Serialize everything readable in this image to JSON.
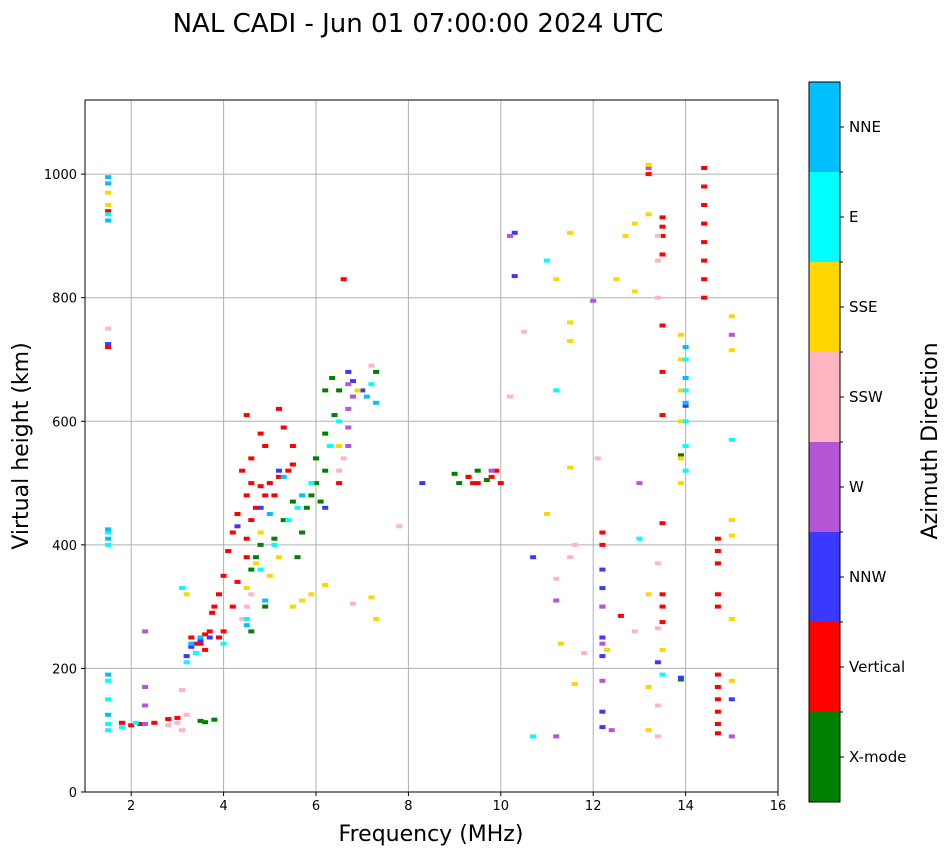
{
  "chart_data": {
    "type": "scatter",
    "title": "NAL CADI - Jun 01 07:00:00 2024 UTC",
    "xlabel": "Frequency (MHz)",
    "ylabel": "Virtual height (km)",
    "xlim": [
      1,
      16
    ],
    "ylim": [
      0,
      1120
    ],
    "xticks": [
      2,
      4,
      6,
      8,
      10,
      12,
      14,
      16
    ],
    "yticks": [
      0,
      200,
      400,
      600,
      800,
      1000
    ],
    "grid": true,
    "colorbar": {
      "title": "Azimuth Direction",
      "categories": [
        {
          "name": "X-mode",
          "color": "#008000"
        },
        {
          "name": "Vertical",
          "color": "#ff0000"
        },
        {
          "name": "NNW",
          "color": "#3a3aff"
        },
        {
          "name": "W",
          "color": "#b556d6"
        },
        {
          "name": "SSW",
          "color": "#ffb6c1"
        },
        {
          "name": "SSE",
          "color": "#ffd700"
        },
        {
          "name": "E",
          "color": "#00ffff"
        },
        {
          "name": "NNE",
          "color": "#00bfff"
        }
      ]
    },
    "series": [
      {
        "name": "X-mode",
        "points": [
          [
            3.5,
            115
          ],
          [
            3.6,
            113
          ],
          [
            3.8,
            117
          ],
          [
            5.7,
            420
          ],
          [
            5.8,
            460
          ],
          [
            6.0,
            500
          ],
          [
            6.1,
            470
          ],
          [
            6.2,
            520
          ],
          [
            6.3,
            560
          ],
          [
            6.4,
            610
          ],
          [
            6.35,
            670
          ],
          [
            6.5,
            650
          ],
          [
            6.2,
            580
          ],
          [
            6.0,
            540
          ],
          [
            5.9,
            480
          ],
          [
            5.5,
            470
          ],
          [
            5.3,
            440
          ],
          [
            5.1,
            410
          ],
          [
            4.8,
            400
          ],
          [
            4.7,
            380
          ],
          [
            4.6,
            360
          ],
          [
            7.3,
            680
          ],
          [
            9.0,
            515
          ],
          [
            9.1,
            500
          ],
          [
            9.3,
            510
          ],
          [
            9.5,
            520
          ],
          [
            9.7,
            505
          ],
          [
            13.9,
            545
          ],
          [
            13.9,
            182
          ],
          [
            4.6,
            260
          ],
          [
            4.9,
            300
          ],
          [
            5.6,
            380
          ],
          [
            6.2,
            650
          ]
        ]
      },
      {
        "name": "Vertical",
        "points": [
          [
            1.8,
            112
          ],
          [
            2.0,
            108
          ],
          [
            2.2,
            110
          ],
          [
            2.5,
            112
          ],
          [
            2.8,
            118
          ],
          [
            3.0,
            120
          ],
          [
            3.4,
            240
          ],
          [
            3.6,
            255
          ],
          [
            3.7,
            260
          ],
          [
            3.75,
            290
          ],
          [
            3.8,
            300
          ],
          [
            3.9,
            320
          ],
          [
            4.0,
            350
          ],
          [
            4.1,
            390
          ],
          [
            4.2,
            420
          ],
          [
            4.3,
            450
          ],
          [
            4.5,
            480
          ],
          [
            4.6,
            500
          ],
          [
            4.8,
            495
          ],
          [
            5.0,
            500
          ],
          [
            5.2,
            510
          ],
          [
            5.4,
            520
          ],
          [
            5.5,
            530
          ],
          [
            3.5,
            240
          ],
          [
            3.6,
            230
          ],
          [
            3.3,
            250
          ],
          [
            3.9,
            250
          ],
          [
            4.0,
            260
          ],
          [
            4.2,
            300
          ],
          [
            4.3,
            340
          ],
          [
            4.5,
            380
          ],
          [
            4.5,
            410
          ],
          [
            4.6,
            440
          ],
          [
            4.7,
            460
          ],
          [
            4.9,
            480
          ],
          [
            5.1,
            480
          ],
          [
            4.4,
            520
          ],
          [
            4.6,
            540
          ],
          [
            4.9,
            560
          ],
          [
            5.3,
            590
          ],
          [
            6.5,
            500
          ],
          [
            9.5,
            500
          ],
          [
            9.8,
            510
          ],
          [
            9.9,
            520
          ],
          [
            10.0,
            500
          ],
          [
            9.3,
            510
          ],
          [
            9.4,
            500
          ],
          [
            12.2,
            400
          ],
          [
            12.2,
            420
          ],
          [
            13.5,
            930
          ],
          [
            13.5,
            915
          ],
          [
            13.5,
            900
          ],
          [
            13.5,
            870
          ],
          [
            13.5,
            755
          ],
          [
            13.5,
            680
          ],
          [
            13.5,
            610
          ],
          [
            13.5,
            435
          ],
          [
            13.5,
            320
          ],
          [
            13.5,
            300
          ],
          [
            13.5,
            275
          ],
          [
            12.6,
            285
          ],
          [
            13.2,
            1000
          ],
          [
            6.6,
            830
          ],
          [
            1.5,
            720
          ],
          [
            1.5,
            940
          ],
          [
            4.5,
            610
          ],
          [
            5.2,
            620
          ],
          [
            5.5,
            560
          ],
          [
            4.8,
            580
          ]
        ]
      },
      {
        "name": "NNW",
        "points": [
          [
            3.2,
            220
          ],
          [
            3.3,
            235
          ],
          [
            3.5,
            245
          ],
          [
            3.7,
            250
          ],
          [
            4.3,
            430
          ],
          [
            4.8,
            460
          ],
          [
            5.2,
            520
          ],
          [
            6.2,
            460
          ],
          [
            7.0,
            650
          ],
          [
            8.3,
            500
          ],
          [
            10.7,
            380
          ],
          [
            10.3,
            905
          ],
          [
            10.3,
            835
          ],
          [
            12.2,
            300
          ],
          [
            12.2,
            330
          ],
          [
            12.2,
            360
          ],
          [
            12.2,
            250
          ],
          [
            12.2,
            220
          ],
          [
            12.2,
            130
          ],
          [
            12.2,
            105
          ],
          [
            13.4,
            210
          ],
          [
            13.9,
            185
          ],
          [
            14.0,
            625
          ],
          [
            14.0,
            560
          ],
          [
            15.0,
            150
          ],
          [
            1.5,
            725
          ],
          [
            6.8,
            665
          ],
          [
            6.7,
            680
          ]
        ]
      },
      {
        "name": "W",
        "points": [
          [
            2.3,
            110
          ],
          [
            2.3,
            140
          ],
          [
            2.3,
            170
          ],
          [
            2.3,
            260
          ],
          [
            6.7,
            560
          ],
          [
            6.7,
            590
          ],
          [
            6.7,
            620
          ],
          [
            6.8,
            640
          ],
          [
            6.7,
            660
          ],
          [
            9.8,
            520
          ],
          [
            10.2,
            900
          ],
          [
            12.2,
            240
          ],
          [
            12.2,
            180
          ],
          [
            12.2,
            300
          ],
          [
            12.4,
            100
          ],
          [
            13.0,
            500
          ],
          [
            11.2,
            310
          ],
          [
            15.0,
            90
          ],
          [
            15.0,
            740
          ],
          [
            11.2,
            90
          ],
          [
            13.2,
            1010
          ],
          [
            12.0,
            795
          ]
        ]
      },
      {
        "name": "SSW",
        "points": [
          [
            2.8,
            108
          ],
          [
            3.0,
            112
          ],
          [
            3.2,
            125
          ],
          [
            3.1,
            165
          ],
          [
            3.1,
            100
          ],
          [
            4.4,
            280
          ],
          [
            4.5,
            300
          ],
          [
            4.6,
            320
          ],
          [
            6.6,
            540
          ],
          [
            6.5,
            520
          ],
          [
            7.2,
            690
          ],
          [
            7.8,
            430
          ],
          [
            10.2,
            640
          ],
          [
            11.5,
            380
          ],
          [
            11.6,
            400
          ],
          [
            11.2,
            345
          ],
          [
            11.8,
            225
          ],
          [
            12.9,
            260
          ],
          [
            13.4,
            900
          ],
          [
            13.4,
            860
          ],
          [
            13.4,
            800
          ],
          [
            13.4,
            370
          ],
          [
            13.4,
            265
          ],
          [
            13.4,
            140
          ],
          [
            13.4,
            90
          ],
          [
            12.1,
            540
          ],
          [
            6.8,
            305
          ],
          [
            1.5,
            750
          ],
          [
            10.5,
            745
          ]
        ]
      },
      {
        "name": "SSE",
        "points": [
          [
            3.2,
            320
          ],
          [
            4.5,
            330
          ],
          [
            4.7,
            370
          ],
          [
            4.8,
            420
          ],
          [
            5.0,
            350
          ],
          [
            5.2,
            380
          ],
          [
            5.5,
            300
          ],
          [
            5.7,
            310
          ],
          [
            5.9,
            320
          ],
          [
            6.2,
            335
          ],
          [
            6.5,
            560
          ],
          [
            6.9,
            650
          ],
          [
            7.3,
            280
          ],
          [
            7.2,
            315
          ],
          [
            11.5,
            905
          ],
          [
            11.2,
            830
          ],
          [
            11.5,
            760
          ],
          [
            11.5,
            730
          ],
          [
            11.3,
            240
          ],
          [
            11.6,
            175
          ],
          [
            11.5,
            525
          ],
          [
            11.0,
            450
          ],
          [
            12.5,
            830
          ],
          [
            12.9,
            810
          ],
          [
            12.7,
            900
          ],
          [
            12.9,
            920
          ],
          [
            13.2,
            1015
          ],
          [
            13.2,
            935
          ],
          [
            13.2,
            320
          ],
          [
            13.2,
            170
          ],
          [
            13.2,
            100
          ],
          [
            13.9,
            740
          ],
          [
            13.9,
            700
          ],
          [
            13.9,
            650
          ],
          [
            13.9,
            600
          ],
          [
            13.9,
            540
          ],
          [
            13.9,
            500
          ],
          [
            15.0,
            770
          ],
          [
            15.0,
            715
          ],
          [
            15.0,
            440
          ],
          [
            15.0,
            415
          ],
          [
            15.0,
            180
          ],
          [
            15.0,
            280
          ],
          [
            1.5,
            970
          ],
          [
            1.5,
            950
          ],
          [
            12.3,
            230
          ],
          [
            13.5,
            230
          ]
        ]
      },
      {
        "name": "E",
        "points": [
          [
            1.5,
            180
          ],
          [
            1.5,
            150
          ],
          [
            1.5,
            110
          ],
          [
            1.5,
            100
          ],
          [
            1.8,
            105
          ],
          [
            2.1,
            112
          ],
          [
            3.1,
            330
          ],
          [
            3.2,
            210
          ],
          [
            3.4,
            225
          ],
          [
            4.0,
            240
          ],
          [
            4.5,
            280
          ],
          [
            4.8,
            360
          ],
          [
            5.1,
            400
          ],
          [
            5.4,
            440
          ],
          [
            5.6,
            460
          ],
          [
            5.9,
            500
          ],
          [
            6.3,
            560
          ],
          [
            6.5,
            600
          ],
          [
            7.2,
            660
          ],
          [
            13.0,
            410
          ],
          [
            13.5,
            190
          ],
          [
            14.0,
            700
          ],
          [
            14.0,
            650
          ],
          [
            14.0,
            600
          ],
          [
            14.0,
            560
          ],
          [
            14.0,
            520
          ],
          [
            11.0,
            860
          ],
          [
            10.7,
            90
          ],
          [
            11.2,
            650
          ],
          [
            15.0,
            570
          ],
          [
            1.5,
            400
          ],
          [
            1.5,
            420
          ],
          [
            1.5,
            935
          ]
        ]
      },
      {
        "name": "NNE",
        "points": [
          [
            1.5,
            995
          ],
          [
            1.5,
            985
          ],
          [
            1.5,
            925
          ],
          [
            1.5,
            410
          ],
          [
            1.5,
            425
          ],
          [
            1.5,
            190
          ],
          [
            1.5,
            125
          ],
          [
            3.3,
            240
          ],
          [
            3.5,
            250
          ],
          [
            4.5,
            270
          ],
          [
            4.9,
            310
          ],
          [
            5.0,
            450
          ],
          [
            5.3,
            510
          ],
          [
            5.7,
            480
          ],
          [
            7.1,
            640
          ],
          [
            7.3,
            630
          ],
          [
            14.0,
            630
          ],
          [
            14.0,
            670
          ],
          [
            14.0,
            720
          ]
        ]
      },
      {
        "name": "Vertical",
        "points": [
          [
            14.4,
            1010
          ],
          [
            14.4,
            980
          ],
          [
            14.4,
            950
          ],
          [
            14.4,
            920
          ],
          [
            14.4,
            890
          ],
          [
            14.4,
            860
          ],
          [
            14.4,
            830
          ],
          [
            14.4,
            800
          ],
          [
            14.7,
            410
          ],
          [
            14.7,
            390
          ],
          [
            14.7,
            370
          ],
          [
            14.7,
            320
          ],
          [
            14.7,
            300
          ],
          [
            14.7,
            190
          ],
          [
            14.7,
            170
          ],
          [
            14.7,
            150
          ],
          [
            14.7,
            130
          ],
          [
            14.7,
            110
          ],
          [
            14.7,
            95
          ]
        ]
      }
    ]
  }
}
